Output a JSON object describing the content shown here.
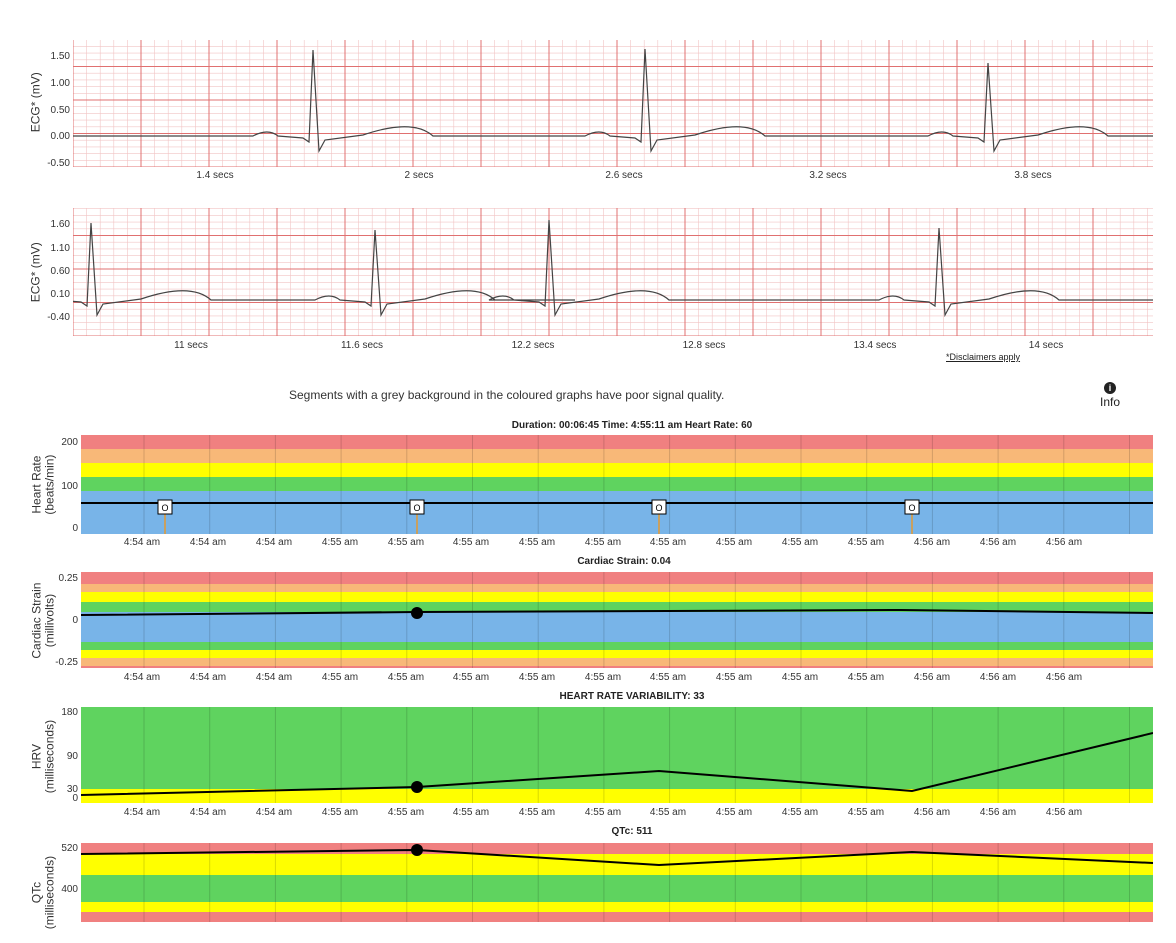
{
  "ecg1": {
    "ylabel": "ECG* (mV)",
    "yticks": [
      "1.50",
      "1.00",
      "0.50",
      "0.00",
      "-0.50"
    ],
    "xticks": [
      "1.4 secs",
      "2 secs",
      "2.6 secs",
      "3.2 secs",
      "3.8 secs"
    ]
  },
  "ecg2": {
    "ylabel": "ECG* (mV)",
    "yticks": [
      "1.60",
      "1.10",
      "0.60",
      "0.10",
      "-0.40"
    ],
    "xticks": [
      "11 secs",
      "11.6 secs",
      "12.2 secs",
      "12.8 secs",
      "13.4 secs",
      "14 secs"
    ],
    "disclaimer": "*Disclaimers apply"
  },
  "note": "Segments with a grey background in the coloured graphs have poor signal quality.",
  "info_label": "Info",
  "time_ticks": [
    "4:54 am",
    "4:54 am",
    "4:54 am",
    "4:55 am",
    "4:55 am",
    "4:55 am",
    "4:55 am",
    "4:55 am",
    "4:55 am",
    "4:55 am",
    "4:55 am",
    "4:55 am",
    "4:56 am",
    "4:56 am",
    "4:56 am"
  ],
  "hr": {
    "title": "Duration: 00:06:45   Time: 4:55:11 am   Heart Rate: 60",
    "ylabel": "Heart Rate\n(beats/min)",
    "yticks": [
      "200",
      "100",
      "0"
    ],
    "marker_label": "O"
  },
  "strain": {
    "title": "Cardiac Strain: 0.04",
    "ylabel": "Cardiac Strain\n(millivolts)",
    "yticks": [
      "0.25",
      "0",
      "-0.25"
    ]
  },
  "hrv": {
    "title": "HEART RATE VARIABILITY: 33",
    "ylabel": "HRV\n(milliseconds)",
    "yticks": [
      "180",
      "90",
      "30",
      "0"
    ]
  },
  "qtc": {
    "title": "QTc: 511",
    "ylabel": "QTc\n(milliseconds)",
    "yticks": [
      "520",
      "400"
    ]
  },
  "colors": {
    "red": "#f08080",
    "orange": "#f8b878",
    "yellow": "#ffff00",
    "green": "#5fd35f",
    "blue": "#78b4e8",
    "ecg_grid_major": "#e07070",
    "ecg_grid_minor": "#f2c4c4"
  }
}
